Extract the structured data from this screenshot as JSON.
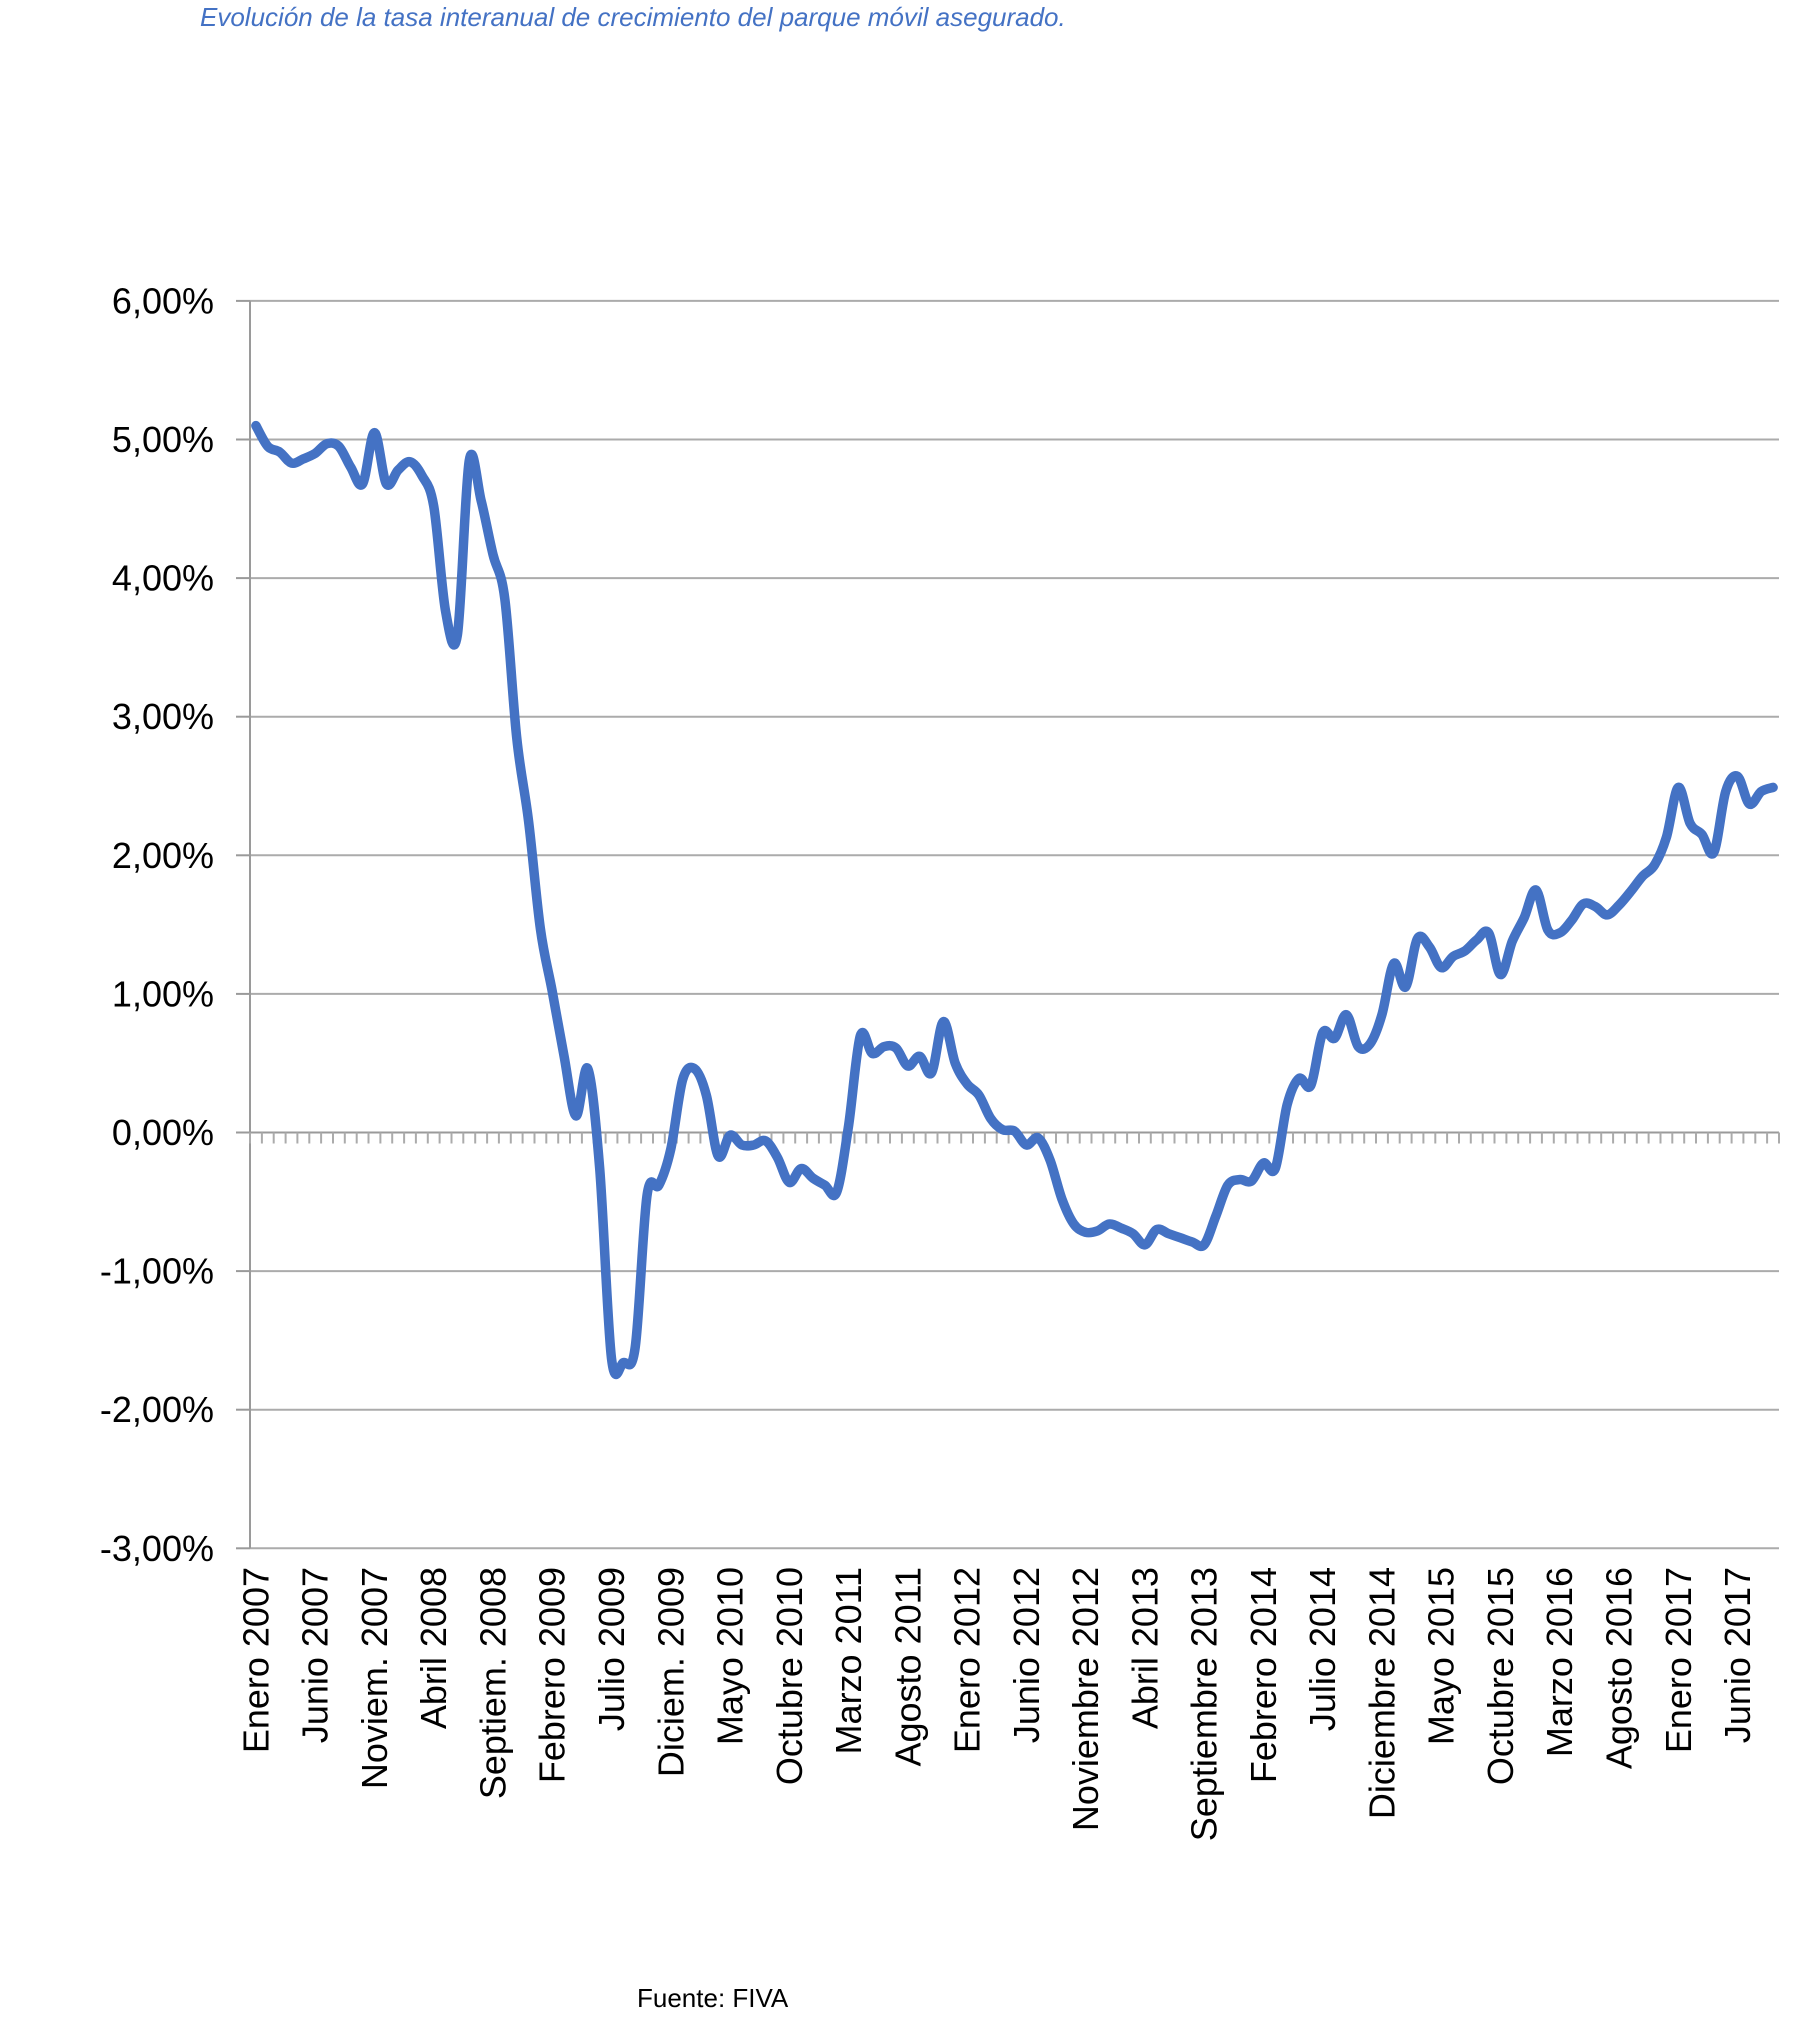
{
  "chart_data": {
    "type": "line",
    "title": "Evolución de la tasa interanual de crecimiento del parque móvil asegurado.",
    "source": "Fuente: FIVA",
    "xlabel": "",
    "ylabel": "",
    "ylim": [
      -3,
      6
    ],
    "ytick_step": 1,
    "ytick_labels": [
      "6,00%",
      "5,00%",
      "4,00%",
      "3,00%",
      "2,00%",
      "1,00%",
      "0,00%",
      "-1,00%",
      "-2,00%",
      "-3,00%"
    ],
    "grid": "horizontal",
    "legend": "none",
    "x_axis": {
      "visible_tick_labels": [
        "Enero 2007",
        "Junio 2007",
        "Noviem. 2007",
        "Abril 2008",
        "Septiem. 2008",
        "Febrero 2009",
        "Julio 2009",
        "Diciem. 2009",
        "Mayo 2010",
        "Octubre 2010",
        "Marzo 2011",
        "Agosto 2011",
        "Enero 2012",
        "Junio 2012",
        "Noviembre 2012",
        "Abril 2013",
        "Septiembre 2013",
        "Febrero 2014",
        "Julio 2014",
        "Diciembre 2014",
        "Mayo 2015",
        "Octubre 2015",
        "Marzo 2016",
        "Agosto 2016",
        "Enero 2017",
        "Junio 2017"
      ],
      "label_every_n_points": 5,
      "minor_ticks": "one per month below the 0,00% axis line"
    },
    "series": [
      {
        "unit": "%",
        "frequency": "monthly, first point aligned with Enero 2007",
        "values": [
          5.1,
          4.95,
          4.91,
          4.83,
          4.86,
          4.9,
          4.97,
          4.95,
          4.8,
          4.68,
          5.05,
          4.68,
          4.78,
          4.84,
          4.74,
          4.52,
          3.76,
          3.59,
          4.85,
          4.56,
          4.17,
          3.85,
          2.85,
          2.25,
          1.47,
          1.02,
          0.55,
          0.12,
          0.46,
          -0.26,
          -1.63,
          -1.66,
          -1.55,
          -0.45,
          -0.38,
          -0.12,
          0.38,
          0.46,
          0.27,
          -0.17,
          -0.02,
          -0.09,
          -0.09,
          -0.06,
          -0.18,
          -0.36,
          -0.26,
          -0.33,
          -0.38,
          -0.43,
          0.05,
          0.7,
          0.57,
          0.62,
          0.61,
          0.48,
          0.55,
          0.43,
          0.8,
          0.5,
          0.35,
          0.27,
          0.1,
          0.02,
          0.01,
          -0.09,
          -0.04,
          -0.2,
          -0.48,
          -0.66,
          -0.72,
          -0.71,
          -0.66,
          -0.69,
          -0.73,
          -0.81,
          -0.7,
          -0.73,
          -0.76,
          -0.79,
          -0.81,
          -0.6,
          -0.38,
          -0.34,
          -0.35,
          -0.22,
          -0.26,
          0.2,
          0.39,
          0.34,
          0.72,
          0.68,
          0.85,
          0.62,
          0.64,
          0.85,
          1.22,
          1.05,
          1.4,
          1.34,
          1.19,
          1.27,
          1.31,
          1.39,
          1.44,
          1.14,
          1.38,
          1.55,
          1.75,
          1.46,
          1.44,
          1.53,
          1.65,
          1.63,
          1.57,
          1.64,
          1.74,
          1.85,
          1.93,
          2.13,
          2.49,
          2.23,
          2.15,
          2.02,
          2.46,
          2.57,
          2.37,
          2.46,
          2.49
        ]
      }
    ],
    "style": {
      "line_color": "#4472C4",
      "title_color": "#4472C4",
      "grid_color": "#ABABAB",
      "axis_color": "#9A9A9A",
      "label_color": "#000000"
    }
  }
}
